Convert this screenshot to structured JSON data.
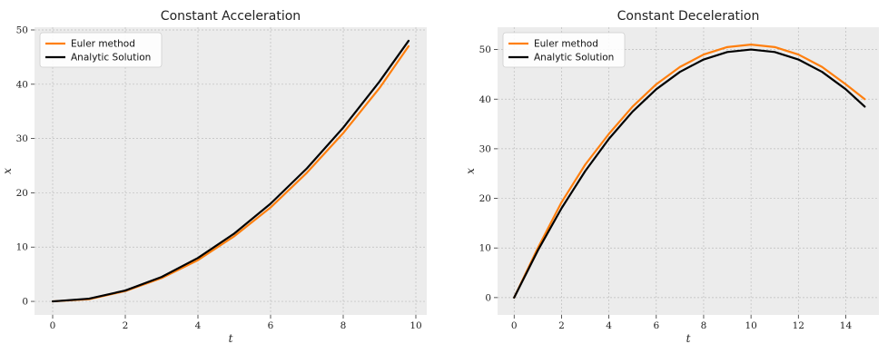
{
  "chart_data": [
    {
      "type": "line",
      "title": "Constant Acceleration",
      "xlabel": "t",
      "ylabel": "x",
      "xlim": [
        -0.5,
        10.3
      ],
      "ylim": [
        -2.5,
        50.5
      ],
      "xticks": [
        0,
        2,
        4,
        6,
        8,
        10
      ],
      "yticks": [
        0,
        10,
        20,
        30,
        40,
        50
      ],
      "grid": true,
      "legend_position": "top-left",
      "series": [
        {
          "name": "Euler method",
          "color": "#ff7f0e",
          "x": [
            0,
            1,
            2,
            3,
            4,
            5,
            6,
            7,
            8,
            9,
            9.8
          ],
          "y": [
            0,
            0.4,
            1.9,
            4.3,
            7.6,
            12.0,
            17.3,
            23.7,
            31.0,
            39.3,
            47.0
          ]
        },
        {
          "name": "Analytic Solution",
          "color": "#000000",
          "x": [
            0,
            1,
            2,
            3,
            4,
            5,
            6,
            7,
            8,
            9,
            9.8
          ],
          "y": [
            0,
            0.5,
            2.0,
            4.5,
            8.0,
            12.5,
            18.0,
            24.5,
            32.0,
            40.5,
            48.0
          ]
        }
      ]
    },
    {
      "type": "line",
      "title": "Constant Deceleration",
      "xlabel": "t",
      "ylabel": "x",
      "xlim": [
        -0.7,
        15.4
      ],
      "ylim": [
        -3.5,
        54.5
      ],
      "xticks": [
        0,
        2,
        4,
        6,
        8,
        10,
        12,
        14
      ],
      "yticks": [
        0,
        10,
        20,
        30,
        40,
        50
      ],
      "grid": true,
      "legend_position": "top-left",
      "series": [
        {
          "name": "Euler method",
          "color": "#ff7f0e",
          "x": [
            0,
            1,
            2,
            3,
            4,
            5,
            6,
            7,
            8,
            9,
            10,
            11,
            12,
            13,
            14,
            14.8
          ],
          "y": [
            0,
            10.0,
            19.2,
            26.8,
            33.0,
            38.5,
            43.0,
            46.5,
            49.0,
            50.5,
            51.0,
            50.5,
            49.0,
            46.5,
            43.0,
            40.0
          ]
        },
        {
          "name": "Analytic Solution",
          "color": "#000000",
          "x": [
            0,
            1,
            2,
            3,
            4,
            5,
            6,
            7,
            8,
            9,
            10,
            11,
            12,
            13,
            14,
            14.8
          ],
          "y": [
            0,
            9.5,
            18.0,
            25.5,
            32.0,
            37.5,
            42.0,
            45.5,
            48.0,
            49.5,
            50.0,
            49.5,
            48.0,
            45.5,
            42.0,
            38.5
          ]
        }
      ]
    }
  ]
}
